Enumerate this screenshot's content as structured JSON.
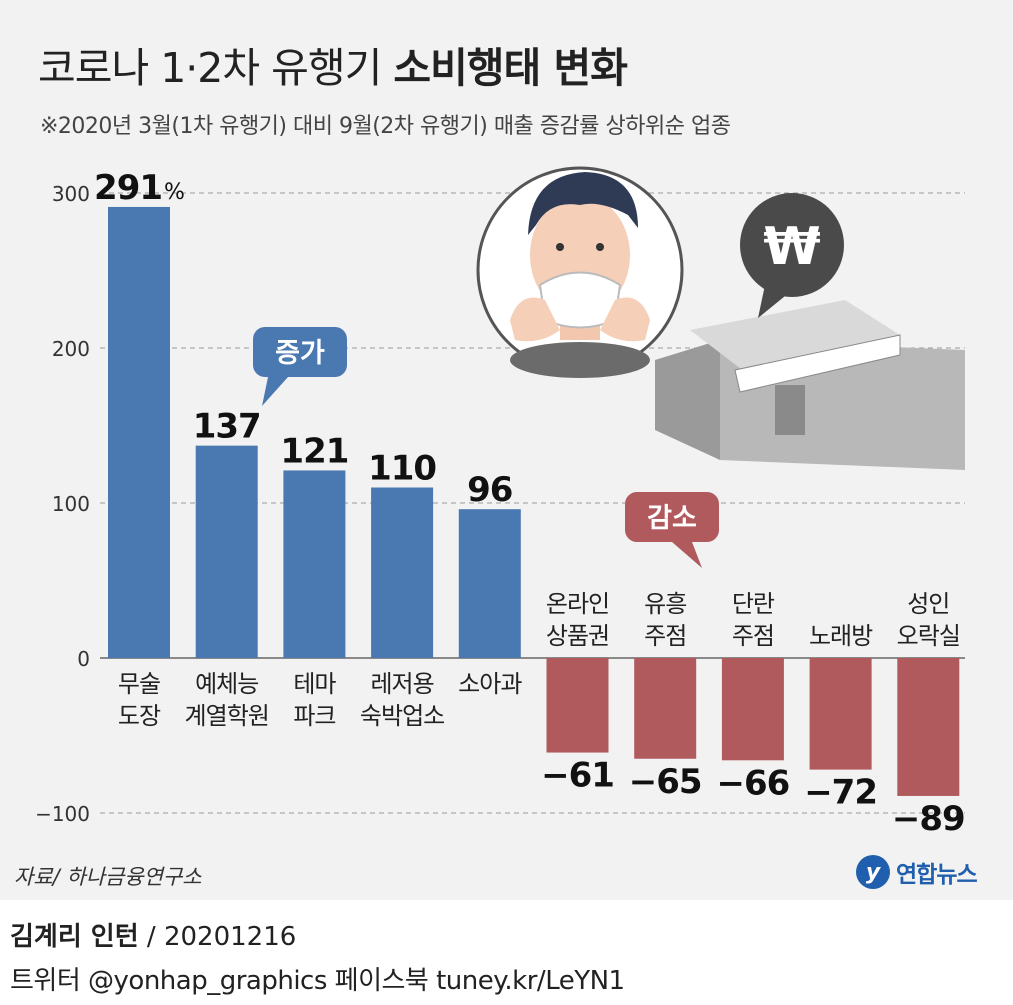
{
  "title": {
    "light": "코로나 1·2차 유행기 ",
    "bold": "소비행태 변화"
  },
  "subtitle": "※2020년 3월(1차 유행기) 대비 9월(2차 유행기) 매출 증감률 상하위순 업종",
  "source": "자료/ 하나금융연구소",
  "logo": {
    "mark": "y",
    "text": "연합뉴스"
  },
  "credit": {
    "author": "김계리 인턴",
    "date": " / 20201216"
  },
  "social": "트위터 @yonhap_graphics  페이스북 tuney.kr/LeYN1",
  "badges": {
    "increase": "증가",
    "decrease": "감소"
  },
  "colors": {
    "positive": "#4a78b0",
    "negative": "#b05a5e",
    "gridline": "#999999",
    "badge_increase": "#4a78b0",
    "badge_decrease": "#b05a5e"
  },
  "icons": [
    "masked-person-icon",
    "store-icon",
    "won-speech-bubble-icon"
  ],
  "chart_data": {
    "type": "bar",
    "unit": "%",
    "ylim": [
      -100,
      300
    ],
    "yticks": [
      300,
      200,
      100,
      0,
      -100
    ],
    "ytick_labels": [
      "300",
      "200",
      "100",
      "0",
      "−100"
    ],
    "categories": [
      [
        "무술",
        "도장"
      ],
      [
        "예체능",
        "계열학원"
      ],
      [
        "테마",
        "파크"
      ],
      [
        "레저용",
        "숙박업소"
      ],
      [
        "소아과"
      ],
      [
        "온라인",
        "상품권"
      ],
      [
        "유흥",
        "주점"
      ],
      [
        "단란",
        "주점"
      ],
      [
        "노래방"
      ],
      [
        "성인",
        "오락실"
      ]
    ],
    "values": [
      291,
      137,
      121,
      110,
      96,
      -61,
      -65,
      -66,
      -72,
      -89
    ],
    "value_labels": [
      "291",
      "137",
      "121",
      "110",
      "96",
      "−61",
      "−65",
      "−66",
      "−72",
      "−89"
    ],
    "grid": true
  }
}
